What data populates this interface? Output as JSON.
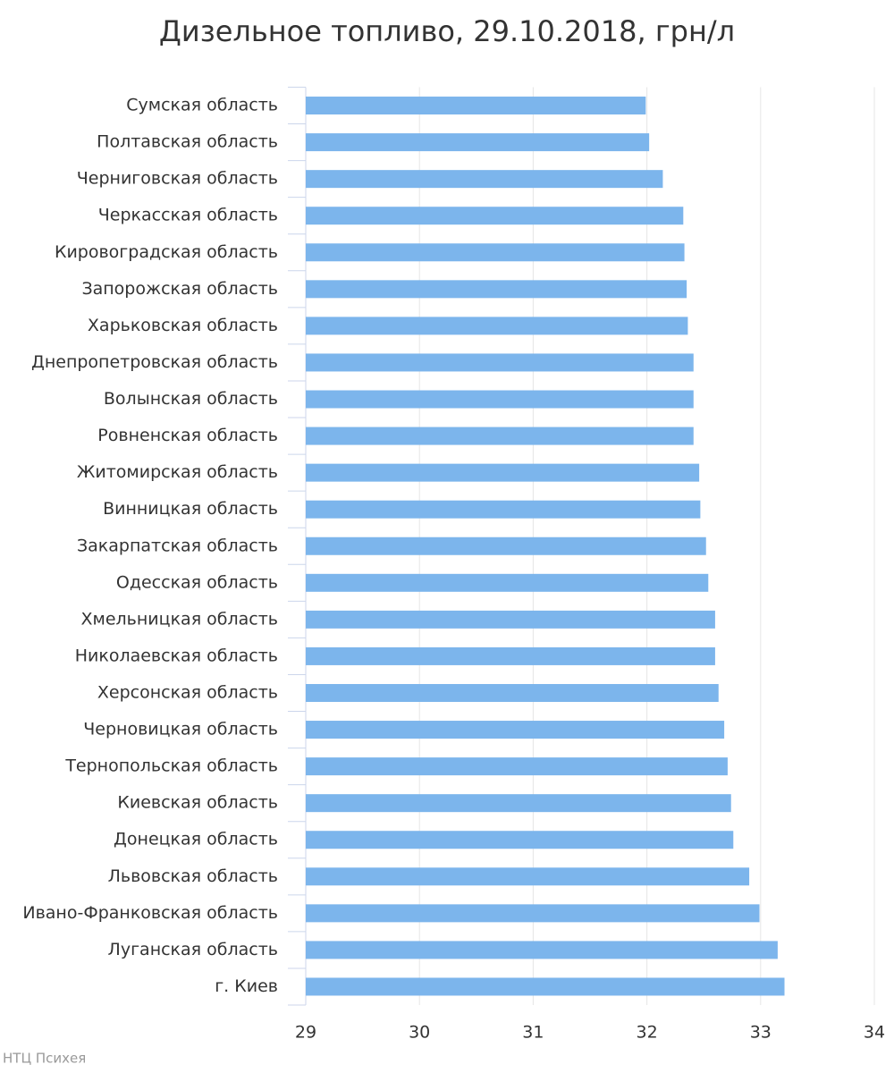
{
  "chart_data": {
    "type": "bar",
    "orientation": "horizontal",
    "title": "Дизельное топливо, 29.10.2018, грн/л",
    "categories": [
      "Сумская область",
      "Полтавская область",
      "Черниговская область",
      "Черкасская область",
      "Кировоградская область",
      "Запорожская область",
      "Харьковская область",
      "Днепропетровская область",
      "Волынская область",
      "Ровненская область",
      "Житомирская область",
      "Винницкая область",
      "Закарпатская область",
      "Одесская область",
      "Хмельницкая область",
      "Николаевская область",
      "Херсонская область",
      "Черновицкая область",
      "Тернопольская область",
      "Киевская область",
      "Донецкая область",
      "Львовская область",
      "Ивано-Франковская область",
      "Луганская область",
      "г. Киев"
    ],
    "values": [
      31.99,
      32.02,
      32.14,
      32.32,
      32.33,
      32.35,
      32.36,
      32.41,
      32.41,
      32.41,
      32.46,
      32.47,
      32.52,
      32.54,
      32.6,
      32.6,
      32.63,
      32.68,
      32.71,
      32.74,
      32.76,
      32.9,
      32.99,
      33.15,
      33.21
    ],
    "color": "#7cb5ec",
    "xlim": [
      29,
      34
    ],
    "xticks": [
      29,
      30,
      31,
      32,
      33,
      34
    ],
    "grid": true,
    "credit": "НТЦ Психея"
  }
}
